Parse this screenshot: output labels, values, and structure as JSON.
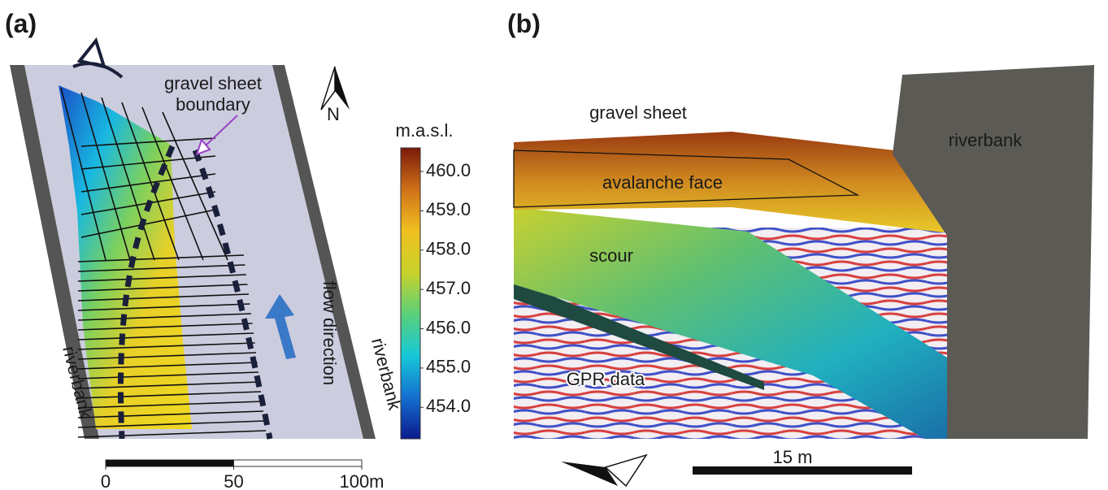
{
  "panel_a": {
    "label": "(a)",
    "boundary_label": [
      "gravel sheet",
      "boundary"
    ],
    "north": "N",
    "flow": "flow direction",
    "bank_left": "riverbank",
    "bank_right": "riverbank",
    "colorbar": {
      "title": "m.a.s.l.",
      "lim": [
        453.2,
        460.6
      ],
      "colormap": [
        "#0a1a8c",
        "#1470d0",
        "#16c8d8",
        "#5ad07a",
        "#c8d22a",
        "#f0c020",
        "#d07018",
        "#7a1a0a"
      ],
      "ticks": [
        {
          "value": 454,
          "label": "454.0"
        },
        {
          "value": 455,
          "label": "455.0"
        },
        {
          "value": 456,
          "label": "456.0"
        },
        {
          "value": 457,
          "label": "457.0"
        },
        {
          "value": 458,
          "label": "458.0"
        },
        {
          "value": 459,
          "label": "459.0"
        },
        {
          "value": 460,
          "label": "460.0"
        }
      ]
    },
    "scale_bar": {
      "lim": [
        0,
        100
      ],
      "ticks": [
        0,
        50,
        {
          "value": 100,
          "label": "100m"
        }
      ]
    }
  },
  "panel_b": {
    "label": "(b)",
    "gravel_sheet": "gravel sheet",
    "riverbank": "riverbank",
    "avalanche_face": "avalanche face",
    "scour": "scour",
    "gpr": "GPR data",
    "scale": "15 m"
  }
}
